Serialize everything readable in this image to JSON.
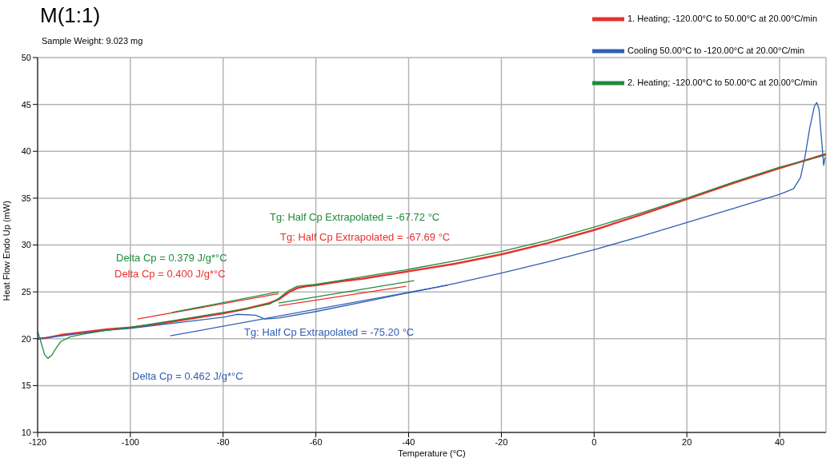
{
  "chart_data": {
    "type": "line",
    "title": "M(1:1)",
    "subtitle": "Sample Weight:  9.023 mg",
    "xlabel": "Temperature (°C)",
    "ylabel": "Heat Flow Endo Up (mW)",
    "xlim": [
      -120,
      50
    ],
    "xticks": [
      -120,
      -100,
      -80,
      -60,
      -40,
      -20,
      0,
      20,
      40
    ],
    "ylim": [
      10,
      50
    ],
    "yticks": [
      10,
      15,
      20,
      25,
      30,
      35,
      40,
      45,
      50
    ],
    "grid": true,
    "legend": "top right",
    "line_style": "solid",
    "marker": "none",
    "series": [
      {
        "name": "1. Heating; -120.00°C to 50.00°C at 20.00°C/min",
        "color": "#e8312f",
        "x": [
          -120,
          -118,
          -115,
          -110,
          -105,
          -100,
          -95,
          -90,
          -85,
          -80,
          -75,
          -70,
          -68,
          -66,
          -64,
          -62,
          -60,
          -55,
          -50,
          -45,
          -40,
          -30,
          -20,
          -10,
          0,
          10,
          20,
          30,
          40,
          50
        ],
        "values": [
          20.0,
          20.1,
          20.4,
          20.7,
          21.0,
          21.2,
          21.5,
          21.9,
          22.3,
          22.7,
          23.2,
          23.8,
          24.2,
          24.9,
          25.4,
          25.6,
          25.7,
          26.1,
          26.4,
          26.8,
          27.2,
          28.0,
          29.0,
          30.2,
          31.6,
          33.2,
          34.9,
          36.6,
          38.2,
          39.7
        ]
      },
      {
        "name": "Cooling 50.00°C to -120.00°C  at 20.00°C/min",
        "color": "#2f5fb3",
        "x": [
          -120,
          -115,
          -110,
          -105,
          -100,
          -95,
          -90,
          -85,
          -80,
          -77,
          -73,
          -71,
          -68,
          -60,
          -50,
          -40,
          -30,
          -20,
          -10,
          0,
          10,
          20,
          30,
          40,
          43,
          44.5,
          45.5,
          46.5,
          47.5,
          48,
          48.5,
          49,
          49.5,
          49.8
        ],
        "values": [
          20.0,
          20.3,
          20.6,
          20.9,
          21.1,
          21.4,
          21.7,
          22.0,
          22.3,
          22.6,
          22.5,
          22.1,
          22.2,
          22.9,
          23.9,
          24.9,
          25.9,
          27.0,
          28.2,
          29.5,
          30.9,
          32.4,
          33.9,
          35.4,
          36.0,
          37.2,
          39.5,
          42.5,
          44.8,
          45.2,
          44.5,
          41.5,
          38.5,
          39.4
        ]
      },
      {
        "name": "2. Heating; -120.00°C to 50.00°C at 20.00°C/min",
        "color": "#1f8a3c",
        "x": [
          -120,
          -119.5,
          -118.5,
          -117.8,
          -117,
          -116,
          -115,
          -113,
          -110,
          -105,
          -100,
          -95,
          -90,
          -85,
          -80,
          -75,
          -70,
          -68,
          -66,
          -64,
          -60,
          -55,
          -50,
          -45,
          -40,
          -30,
          -20,
          -10,
          0,
          10,
          20,
          30,
          40,
          50
        ],
        "values": [
          20.8,
          20.0,
          18.3,
          17.9,
          18.2,
          19.0,
          19.7,
          20.2,
          20.5,
          20.9,
          21.2,
          21.6,
          22.0,
          22.4,
          22.8,
          23.2,
          23.7,
          24.3,
          25.1,
          25.6,
          25.8,
          26.2,
          26.6,
          27.0,
          27.4,
          28.3,
          29.3,
          30.5,
          31.9,
          33.4,
          35.0,
          36.7,
          38.3,
          39.6
        ]
      },
      {
        "color": "#e8312f",
        "x": [
          -98.5,
          -68
        ],
        "values": [
          22.1,
          24.8
        ]
      },
      {
        "color": "#1f8a3c",
        "x": [
          -91,
          -68
        ],
        "values": [
          22.8,
          25.0
        ]
      },
      {
        "color": "#1f8a3c",
        "x": [
          -68,
          -38.8
        ],
        "values": [
          23.8,
          26.2
        ]
      },
      {
        "color": "#e8312f",
        "x": [
          -68,
          -40.5
        ],
        "values": [
          23.5,
          25.6
        ]
      },
      {
        "color": "#2f5fb3",
        "x": [
          -91.4,
          -31.6
        ],
        "values": [
          20.3,
          25.7
        ]
      }
    ],
    "annotations": [
      "Tg: Half Cp Extrapolated = -67.72 °C",
      "Tg: Half Cp Extrapolated = -67.69 °C",
      "Tg: Half Cp Extrapolated = -75.20 °C",
      "Delta Cp = 0.379 J/g*°C",
      "Delta Cp = 0.400 J/g*°C",
      "Delta Cp = 0.462 J/g*°C"
    ]
  }
}
